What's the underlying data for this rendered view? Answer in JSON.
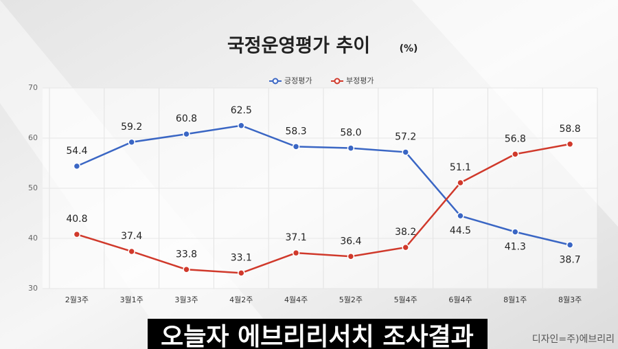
{
  "chart_data": {
    "type": "line",
    "title": "국정운영평가 추이",
    "title_unit": "(%)",
    "caption": "오늘자 에브리리서치 조사결과",
    "credit": "디자인=주)에브리리",
    "categories": [
      "2월3주",
      "3월1주",
      "3월3주",
      "4월2주",
      "4월4주",
      "5월2주",
      "5월4주",
      "6월4주",
      "8월1주",
      "8월3주"
    ],
    "series": [
      {
        "name": "긍정평가",
        "color": "#3a66c4",
        "values": [
          54.4,
          59.2,
          60.8,
          62.5,
          58.3,
          58.0,
          57.2,
          44.5,
          41.3,
          38.7
        ],
        "value_labels": [
          "54.4",
          "59.2",
          "60.8",
          "62.5",
          "58.3",
          "58.0",
          "57.2",
          "44.5",
          "41.3",
          "38.7"
        ]
      },
      {
        "name": "부정평가",
        "color": "#d0392b",
        "values": [
          40.8,
          37.4,
          33.8,
          33.1,
          37.1,
          36.4,
          38.2,
          51.1,
          56.8,
          58.8
        ],
        "value_labels": [
          "40.8",
          "37.4",
          "33.8",
          "33.1",
          "37.1",
          "36.4",
          "38.2",
          "51.1",
          "56.8",
          "58.8"
        ]
      }
    ],
    "ylim": [
      30,
      70
    ],
    "yticks": [
      30,
      40,
      50,
      60,
      70
    ],
    "grid": true
  }
}
